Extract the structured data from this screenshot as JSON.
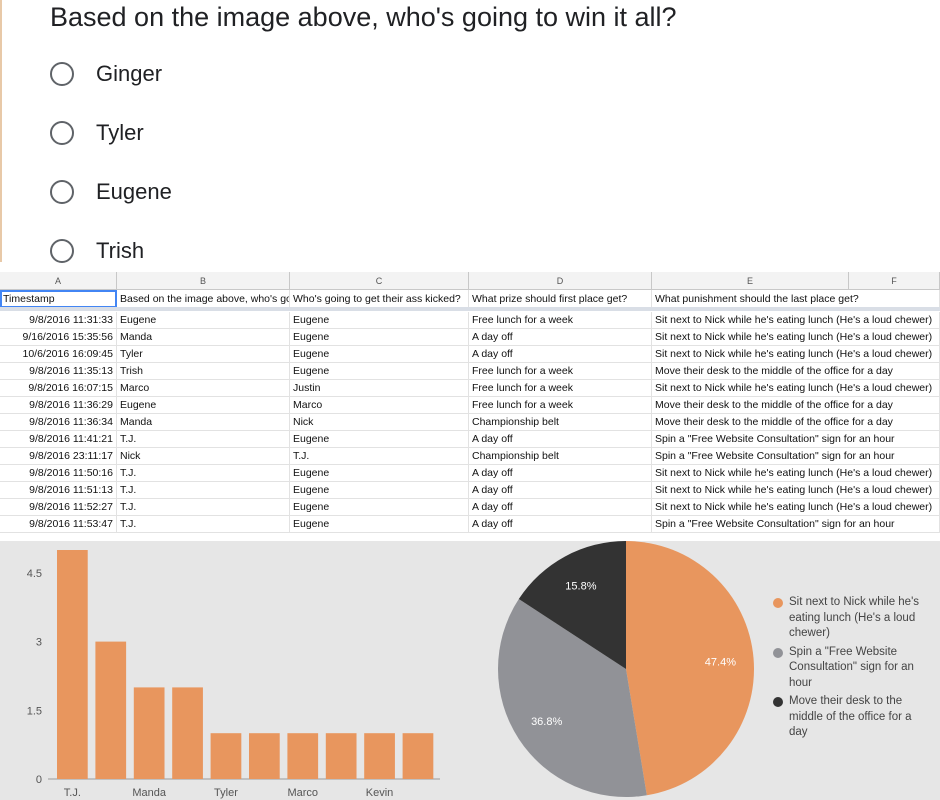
{
  "poll": {
    "question": "Based on the image above, who's going to win it all?",
    "options": [
      "Ginger",
      "Tyler",
      "Eugene",
      "Trish"
    ]
  },
  "sheet": {
    "columns": [
      "A",
      "B",
      "C",
      "D",
      "E",
      "F"
    ],
    "headers": [
      "Timestamp",
      "Based on the image above, who's go",
      "Who's going to get their ass kicked?",
      "What prize should first place get?",
      "What punishment should the last place get?"
    ],
    "rows": [
      [
        "9/8/2016 11:31:33",
        "Eugene",
        "Eugene",
        "Free lunch for a week",
        "Sit next to Nick while he's eating lunch (He's a loud chewer)"
      ],
      [
        "9/16/2016 15:35:56",
        "Manda",
        "Eugene",
        "A day off",
        "Sit next to Nick while he's eating lunch (He's a loud chewer)"
      ],
      [
        "10/6/2016 16:09:45",
        "Tyler",
        "Eugene",
        "A day off",
        "Sit next to Nick while he's eating lunch (He's a loud chewer)"
      ],
      [
        "9/8/2016 11:35:13",
        "Trish",
        "Eugene",
        "Free lunch for a week",
        "Move their desk to the middle of the office for a day"
      ],
      [
        "9/8/2016 16:07:15",
        "Marco",
        "Justin",
        "Free lunch for a week",
        "Sit next to Nick while he's eating lunch (He's a loud chewer)"
      ],
      [
        "9/8/2016 11:36:29",
        "Eugene",
        "Marco",
        "Free lunch for a week",
        "Move their desk to the middle of the office for a day"
      ],
      [
        "9/8/2016 11:36:34",
        "Manda",
        "Nick",
        "Championship belt",
        "Move their desk to the middle of the office for a day"
      ],
      [
        "9/8/2016 11:41:21",
        "T.J.",
        "Eugene",
        "A day off",
        "Spin a \"Free Website Consultation\" sign for an hour"
      ],
      [
        "9/8/2016 23:11:17",
        "Nick",
        "T.J.",
        "Championship belt",
        "Spin a \"Free Website Consultation\" sign for an hour"
      ],
      [
        "9/8/2016 11:50:16",
        "T.J.",
        "Eugene",
        "A day off",
        "Sit next to Nick while he's eating lunch (He's a loud chewer)"
      ],
      [
        "9/8/2016 11:51:13",
        "T.J.",
        "Eugene",
        "A day off",
        "Sit next to Nick while he's eating lunch (He's a loud chewer)"
      ],
      [
        "9/8/2016 11:52:27",
        "T.J.",
        "Eugene",
        "A day off",
        "Sit next to Nick while he's eating lunch (He's a loud chewer)"
      ],
      [
        "9/8/2016 11:53:47",
        "T.J.",
        "Eugene",
        "A day off",
        "Spin a \"Free Website Consultation\" sign for an hour"
      ]
    ]
  },
  "chart_data": [
    {
      "type": "bar",
      "categories": [
        "T.J.",
        "",
        "Manda",
        "",
        "Tyler",
        "",
        "Marco",
        "",
        "Kevin",
        ""
      ],
      "values": [
        5,
        3,
        2,
        2,
        1,
        1,
        1,
        1,
        1,
        1
      ],
      "yticks": [
        "0",
        "1.5",
        "3",
        "4.5"
      ],
      "ylim": [
        0,
        5
      ],
      "color": "#e8965e"
    },
    {
      "type": "pie",
      "slices": [
        {
          "label": "Sit next to Nick while he's eating lunch (He's a loud chewer)",
          "value": 47.4,
          "display": "47.4%",
          "color": "#e8965e"
        },
        {
          "label": "Spin a \"Free Website Consultation\" sign for an hour",
          "value": 36.8,
          "display": "36.8%",
          "color": "#919297"
        },
        {
          "label": "Move their desk to the middle of the office for a day",
          "value": 15.8,
          "display": "15.8%",
          "color": "#333333"
        }
      ]
    }
  ]
}
